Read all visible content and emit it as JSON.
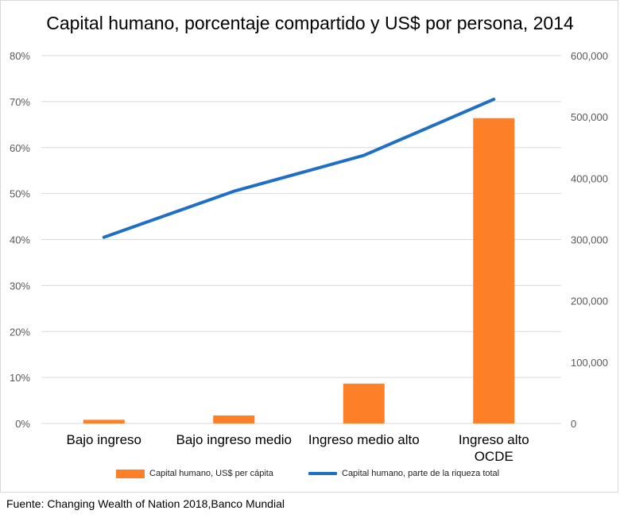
{
  "chart_data": {
    "type": "bar+line",
    "title": "Capital humano, porcentaje compartido y US$ por persona, 2014",
    "categories": [
      "Bajo ingreso",
      "Bajo ingreso medio",
      "Ingreso medio alto",
      "Ingreso alto OCDE"
    ],
    "series": [
      {
        "name": "Capital humano, US$ per cápita",
        "type": "bar",
        "axis": "right",
        "color": "#fd7f28",
        "values": [
          6000,
          13000,
          65000,
          498000
        ]
      },
      {
        "name": "Capital humano, parte de la riqueza total",
        "type": "line",
        "axis": "left",
        "color": "#1f6fc5",
        "values": [
          0.405,
          0.505,
          0.583,
          0.705
        ]
      }
    ],
    "y_left": {
      "ylim": [
        0,
        0.8
      ],
      "ticks": [
        "0%",
        "10%",
        "20%",
        "30%",
        "40%",
        "50%",
        "60%",
        "70%",
        "80%"
      ]
    },
    "y_right": {
      "ylim": [
        0,
        600000
      ],
      "ticks": [
        "0",
        "100,000",
        "200,000",
        "300,000",
        "400,000",
        "500,000",
        "600,000"
      ]
    },
    "grid": true,
    "legend_position": "bottom"
  },
  "source": "Fuente: Changing Wealth of Nation 2018,Banco Mundial"
}
